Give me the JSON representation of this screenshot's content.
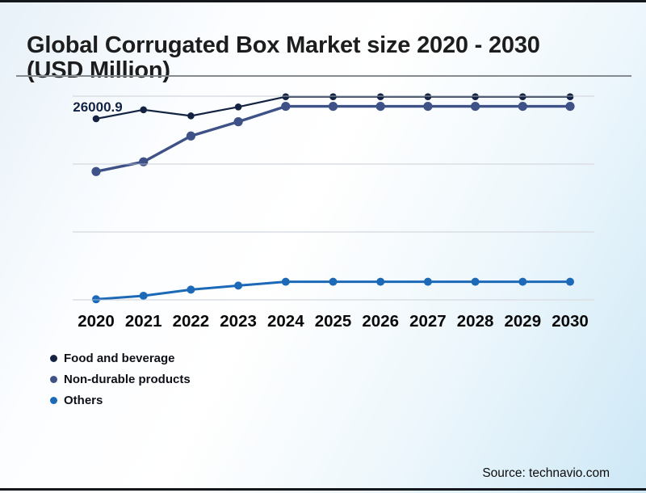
{
  "page": {
    "title": "Global Corrugated Box Market size 2020 - 2030 (USD Million)",
    "source": "Source: technavio.com"
  },
  "colors": {
    "background_start": "#e7f1f8",
    "background_end": "#cde8f6",
    "frame_border": "#14181c",
    "title_text": "#1d1d1d",
    "title_rule": "#868b90",
    "gridline": "#dbe0e5",
    "axis_label": "#090909",
    "data_label": "#0e2347"
  },
  "chart_data": {
    "type": "line",
    "title": "Global Corrugated Box Market size 2020 - 2030 (USD Million)",
    "categories": [
      "2020",
      "2021",
      "2022",
      "2023",
      "2024",
      "2025",
      "2026",
      "2027",
      "2028",
      "2029",
      "2030"
    ],
    "series": [
      {
        "name": "Food and beverage",
        "color": "#142342",
        "values": [
          26000.9,
          26400,
          26130,
          26525,
          26975,
          26975,
          26975,
          26975,
          26975,
          26975,
          26975
        ]
      },
      {
        "name": "Non-durable products",
        "color": "#3e5287",
        "values": [
          23670,
          24100,
          25240,
          25870,
          26550,
          26550,
          26550,
          26550,
          26550,
          26550,
          26550
        ]
      },
      {
        "name": "Others",
        "color": "#1c69b8",
        "values": [
          18025,
          18180,
          18450,
          18630,
          18800,
          18800,
          18800,
          18800,
          18800,
          18800,
          18800
        ]
      }
    ],
    "data_labels": [
      {
        "series_index": 0,
        "point_index": 0,
        "text": "26000.9"
      }
    ],
    "grid": "horizontal-only",
    "grid_values": [
      27000,
      24000,
      21000,
      18000
    ],
    "ylim": [
      17500,
      27300
    ],
    "legend_position": "bottom-left",
    "x_axis_tick_labels_visible": true,
    "y_axis_tick_labels_visible": false
  }
}
